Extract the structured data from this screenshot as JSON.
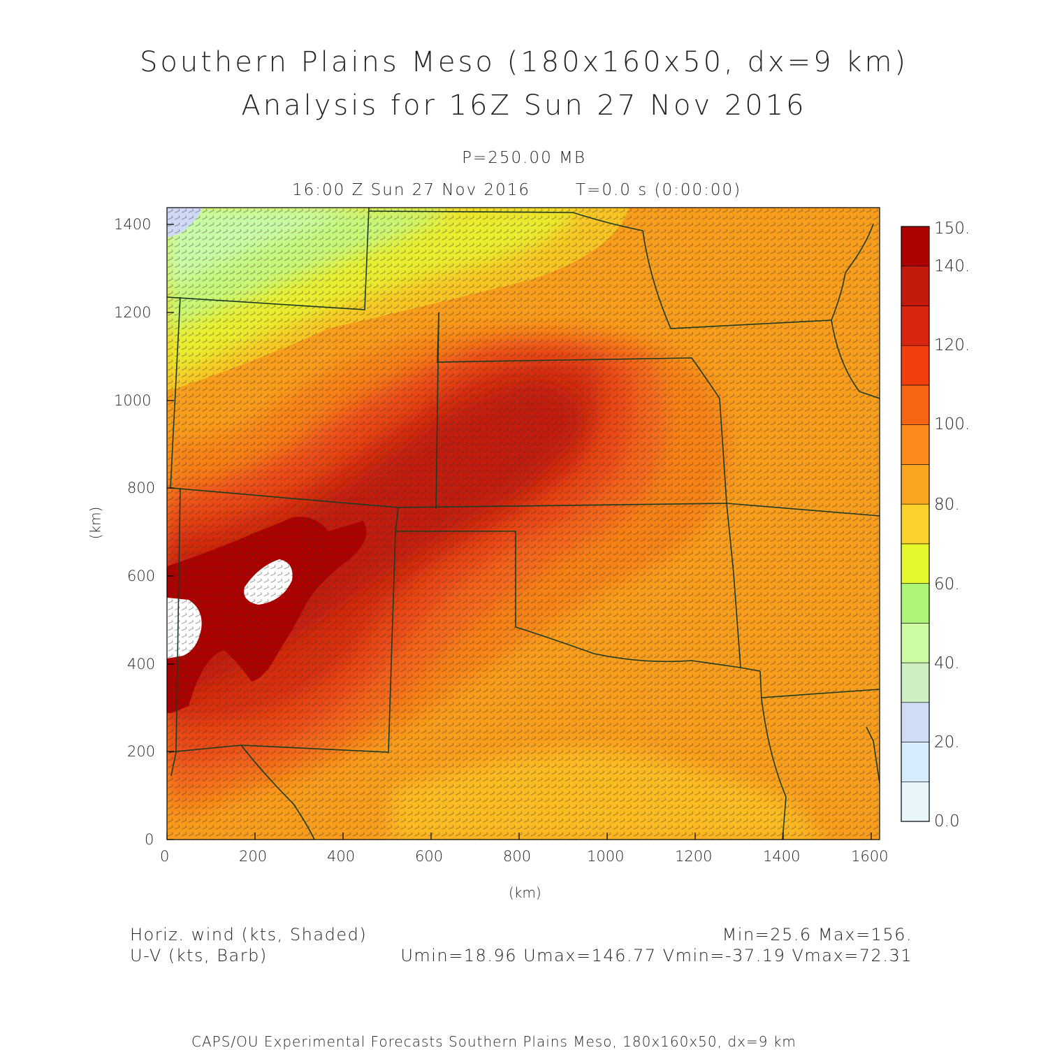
{
  "header": {
    "title_line1": "Southern Plains Meso (180x160x50, dx=9 km)",
    "title_line2": "Analysis for 16Z Sun 27 Nov 2016",
    "level": "P=250.00 MB",
    "valid_time": "16:00 Z Sun 27 Nov 2016",
    "forecast_time": "T=0.0 s (0:00:00)"
  },
  "axes": {
    "x_label": "(km)",
    "y_label": "(km)",
    "x_ticks": [
      "0",
      "200",
      "400",
      "600",
      "800",
      "1000",
      "1200",
      "1400",
      "1600"
    ],
    "y_ticks": [
      "0",
      "200",
      "400",
      "600",
      "800",
      "1000",
      "1200",
      "1400"
    ],
    "x_range_km": [
      0,
      1620
    ],
    "y_range_km": [
      0,
      1440
    ]
  },
  "colorbar": {
    "labels": [
      "0.0",
      "20.",
      "40.",
      "60.",
      "80.",
      "100.",
      "120.",
      "140.",
      "150."
    ],
    "levels": [
      0,
      10,
      20,
      30,
      40,
      50,
      60,
      70,
      80,
      90,
      100,
      110,
      120,
      130,
      140,
      150
    ],
    "colors": [
      "#e8f6fc",
      "#d4ecfb",
      "#cfdcf6",
      "#cfeec4",
      "#cdfca2",
      "#adf577",
      "#e6f82e",
      "#fbd22b",
      "#fba620",
      "#f98a1b",
      "#f56614",
      "#f33f0d",
      "#d9270f",
      "#c41a0b",
      "#ad0000"
    ]
  },
  "footer": {
    "field_label": "Horiz. wind (kts, Shaded)",
    "vector_label": "U-V (kts, Barb)",
    "minmax": "Min=25.6 Max=156.",
    "uv_stats": "Umin=18.96 Umax=146.77 Vmin=-37.19 Vmax=72.31",
    "credit": "CAPS/OU Experimental Forecasts  Southern Plains Meso, 180x160x50, dx=9 km"
  },
  "map_colors": {
    "state_borders": "#1d3b22",
    "barbs": "#333333",
    "frame": "#000000"
  }
}
